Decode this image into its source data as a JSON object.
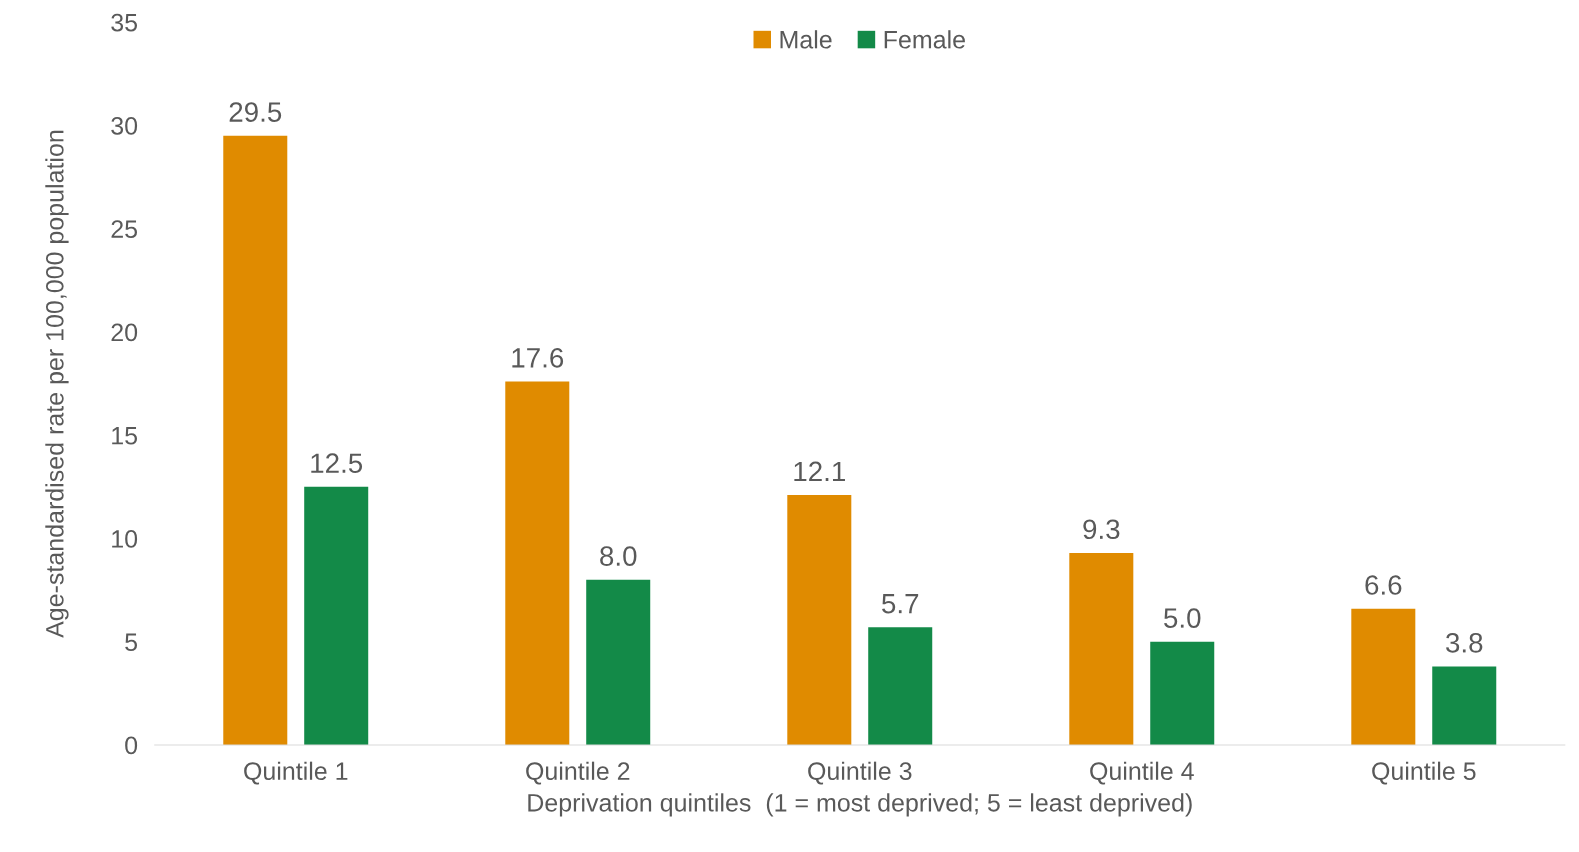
{
  "chart_data": {
    "type": "bar",
    "categories": [
      "Quintile 1",
      "Quintile 2",
      "Quintile 3",
      "Quintile 4",
      "Quintile 5"
    ],
    "series": [
      {
        "name": "Male",
        "color": "#e08b00",
        "values": [
          29.5,
          17.6,
          12.1,
          9.3,
          6.6
        ],
        "value_labels": [
          "29.5",
          "17.6",
          "12.1",
          "9.3",
          "6.6"
        ]
      },
      {
        "name": "Female",
        "color": "#138a48",
        "values": [
          12.5,
          8.0,
          5.7,
          5.0,
          3.8
        ],
        "value_labels": [
          "12.5",
          "8.0",
          "5.7",
          "5.0",
          "3.8"
        ]
      }
    ],
    "xlabel": "Deprivation quintiles  (1 = most deprived; 5 = least deprived)",
    "ylabel": "Age-standardised rate per 100,000 population",
    "ylim": [
      0,
      35
    ],
    "yticks": [
      0,
      5,
      10,
      15,
      20,
      25,
      30,
      35
    ],
    "grid": false,
    "legend": "top"
  }
}
